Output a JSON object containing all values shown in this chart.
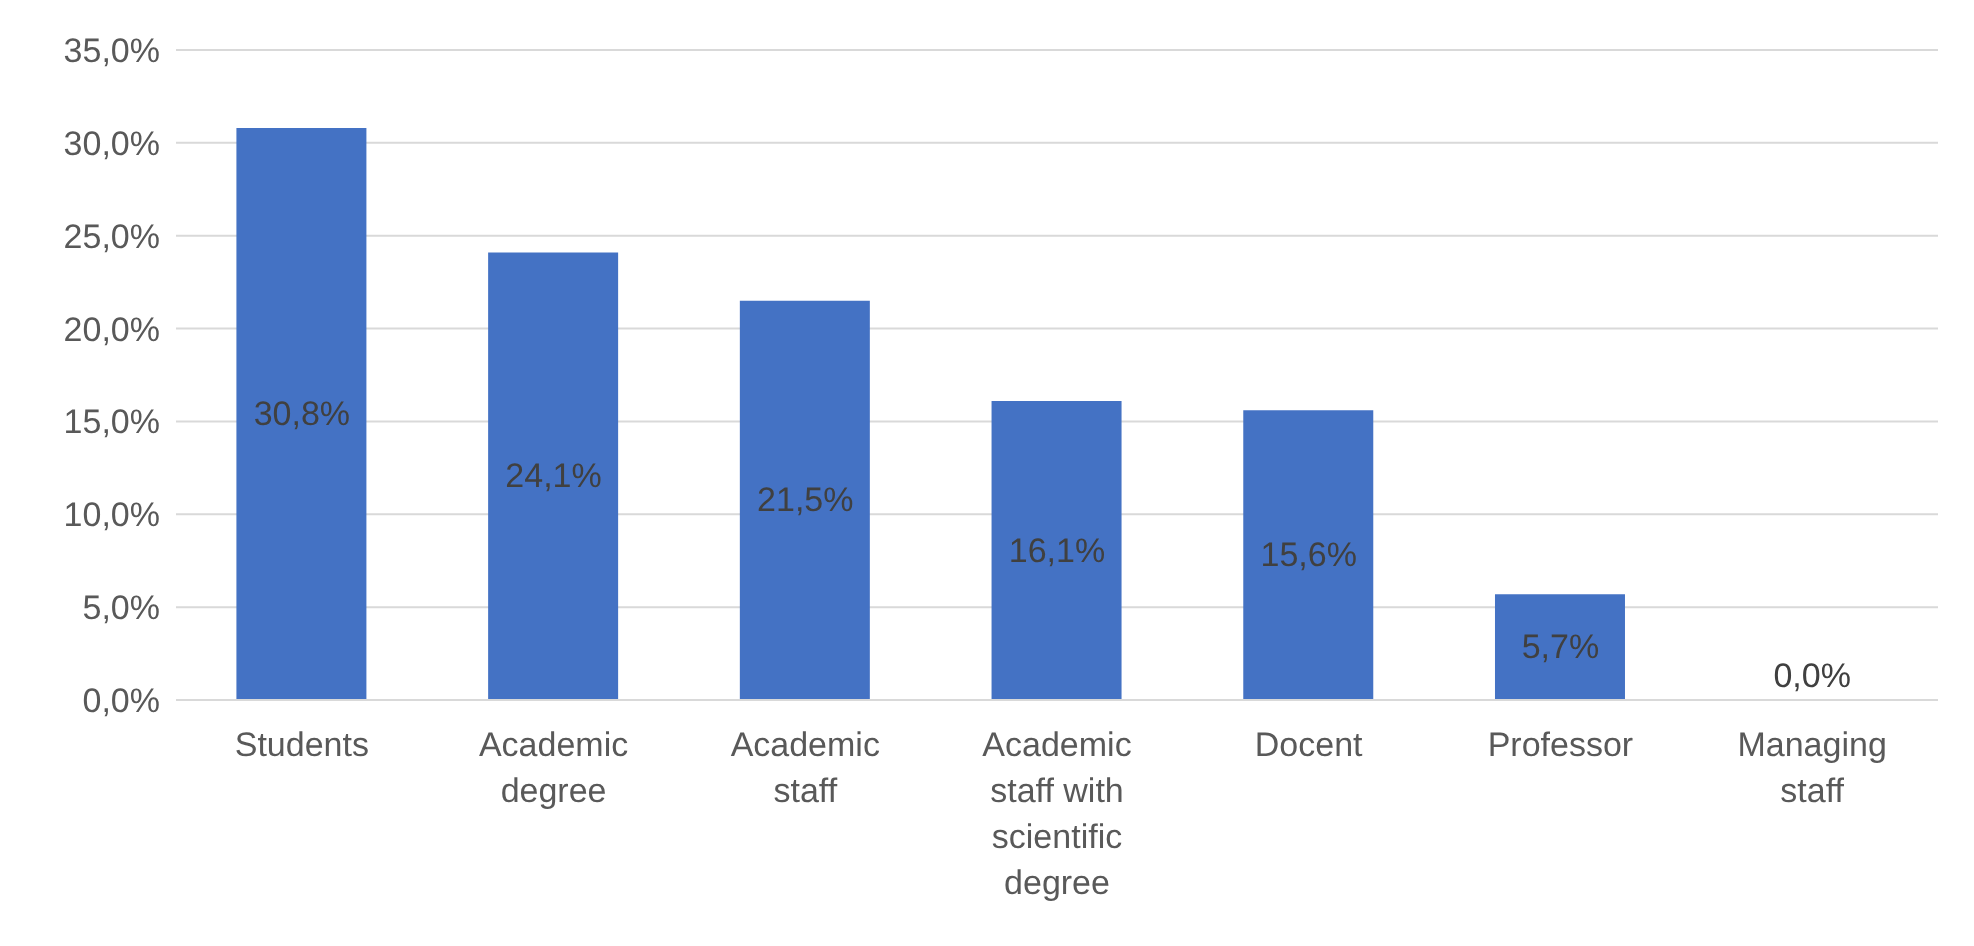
{
  "chart_data": {
    "type": "bar",
    "categories": [
      "Students",
      "Academic degree",
      "Academic staff",
      "Academic staff with scientific degree",
      "Docent",
      "Professor",
      "Managing staff"
    ],
    "values": [
      30.8,
      24.1,
      21.5,
      16.1,
      15.6,
      5.7,
      0.0
    ],
    "value_labels": [
      "30,8%",
      "24,1%",
      "21,5%",
      "16,1%",
      "15,6%",
      "5,7%",
      "0,0%"
    ],
    "color": "#4472c4",
    "ylim": [
      0,
      35
    ],
    "yticks": [
      {
        "value": 0,
        "label": "0,0%"
      },
      {
        "value": 5,
        "label": "5,0%"
      },
      {
        "value": 10,
        "label": "10,0%"
      },
      {
        "value": 15,
        "label": "15,0%"
      },
      {
        "value": 20,
        "label": "20,0%"
      },
      {
        "value": 25,
        "label": "25,0%"
      },
      {
        "value": 30,
        "label": "30,0%"
      },
      {
        "value": 35,
        "label": "35,0%"
      }
    ],
    "grid": "y"
  }
}
